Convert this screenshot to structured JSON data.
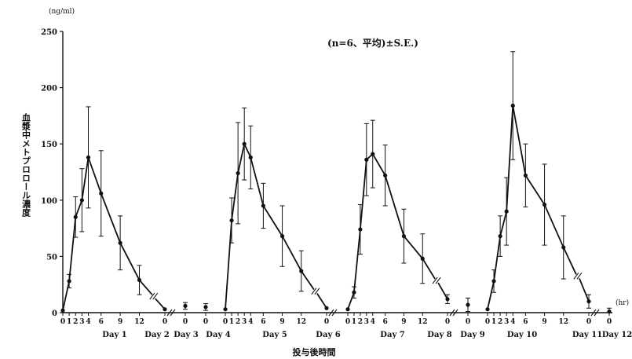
{
  "chart_data": {
    "type": "line",
    "annotation": "(n=6、平均)±S.E.)",
    "y_unit": "(ng/ml)",
    "x_unit": "(hr)",
    "ylabel": "血漿中メトプロロール濃度",
    "xlabel": "投与後時間",
    "ylim": [
      0,
      250
    ],
    "yticks": [
      0,
      50,
      100,
      150,
      200,
      250
    ],
    "segments": [
      {
        "x_hr": [
          0,
          1,
          2,
          3,
          4,
          6,
          9,
          12,
          16
        ],
        "x_labels": [
          "0",
          "1",
          "2",
          "3",
          "4",
          "6",
          "9",
          "12",
          "0"
        ],
        "y": [
          2,
          28,
          85,
          100,
          138,
          106,
          62,
          29,
          3
        ],
        "err": [
          0,
          6,
          18,
          28,
          45,
          38,
          24,
          13,
          0
        ]
      },
      {
        "x_hr": [
          0,
          1,
          2,
          3,
          4,
          6,
          9,
          12,
          16
        ],
        "x_labels": [
          "0",
          "1",
          "2",
          "3",
          "4",
          "6",
          "9",
          "12",
          "0"
        ],
        "y": [
          3,
          82,
          124,
          150,
          138,
          95,
          68,
          37,
          4
        ],
        "err": [
          0,
          20,
          45,
          32,
          28,
          20,
          27,
          18,
          0
        ]
      },
      {
        "x_hr": [
          0,
          1,
          2,
          3,
          4,
          6,
          9,
          12,
          16
        ],
        "x_labels": [
          "0",
          "1",
          "2",
          "3",
          "4",
          "6",
          "9",
          "12",
          "0"
        ],
        "y": [
          3,
          18,
          74,
          136,
          141,
          122,
          68,
          48,
          12
        ],
        "err": [
          0,
          5,
          22,
          32,
          30,
          27,
          24,
          22,
          4
        ]
      },
      {
        "x_hr": [
          0,
          1,
          2,
          3,
          4,
          6,
          9,
          12,
          16
        ],
        "x_labels": [
          "0",
          "1",
          "2",
          "3",
          "4",
          "6",
          "9",
          "12",
          "0"
        ],
        "y": [
          3,
          28,
          68,
          90,
          184,
          122,
          96,
          58,
          10
        ],
        "err": [
          0,
          10,
          18,
          30,
          48,
          28,
          36,
          28,
          6
        ]
      }
    ],
    "day_points": [
      {
        "x_label": "0",
        "y": 6
      },
      {
        "x_label": "0",
        "y": 5
      },
      {
        "x_label": "0",
        "y": 7
      },
      {
        "x_label": "0",
        "y": 1
      }
    ],
    "day_labels": [
      "Day 1",
      "Day 2",
      "Day 3",
      "Day 4",
      "Day 5",
      "Day 6",
      "Day 7",
      "Day 8",
      "Day 9",
      "Day 10",
      "Day 11",
      "Day 12"
    ]
  }
}
